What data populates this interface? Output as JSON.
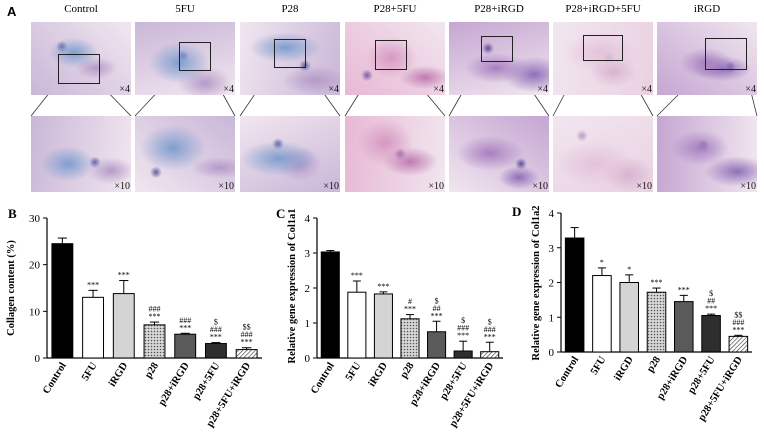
{
  "panel_a": {
    "letter": "A",
    "columns": [
      {
        "label": "Control",
        "top_mag": "×4",
        "bottom_mag": "×10",
        "stain": "blue"
      },
      {
        "label": "5FU",
        "top_mag": "×4",
        "bottom_mag": "×10",
        "stain": "blue"
      },
      {
        "label": "P28",
        "top_mag": "×4",
        "bottom_mag": "×10",
        "stain": "blue"
      },
      {
        "label": "P28+5FU",
        "top_mag": "×4",
        "bottom_mag": "×10",
        "stain": "pink"
      },
      {
        "label": "P28+iRGD",
        "top_mag": "×4",
        "bottom_mag": "×10",
        "stain": "purple"
      },
      {
        "label": "P28+iRGD+5FU",
        "top_mag": "×4",
        "bottom_mag": "×10",
        "stain": "pale"
      },
      {
        "label": "iRGD",
        "top_mag": "×4",
        "bottom_mag": "×10",
        "stain": "purple"
      }
    ]
  },
  "chart_data": [
    {
      "panel": "B",
      "type": "bar",
      "ylabel": "Collagen content (%)",
      "xlabel": "",
      "ylim": [
        0,
        30
      ],
      "yticks": [
        "0",
        "10",
        "20",
        "30"
      ],
      "categories": [
        "Control",
        "5FU",
        "iRGD",
        "p28",
        "p28+iRGD",
        "p28+5FU",
        "p28+5FU+iRGD"
      ],
      "values": [
        24.5,
        13,
        13.8,
        7.1,
        5.1,
        3.1,
        1.8
      ],
      "errors": [
        1.2,
        1.5,
        2.8,
        0.6,
        0.2,
        0.2,
        0.4
      ],
      "fills": [
        "black",
        "white",
        "lightgray",
        "dotted",
        "darkgray",
        "dark",
        "hatched"
      ],
      "annotations": [
        [],
        [
          "***"
        ],
        [
          "***"
        ],
        [
          "***",
          "###"
        ],
        [
          "***",
          "###"
        ],
        [
          "***",
          "###",
          "$"
        ],
        [
          "***",
          "###",
          "$$"
        ]
      ]
    },
    {
      "panel": "C",
      "type": "bar",
      "ylabel": "Relative gene expression of Col1a1",
      "xlabel": "",
      "ylim": [
        0,
        4
      ],
      "yticks": [
        "0",
        "1",
        "2",
        "3",
        "4"
      ],
      "categories": [
        "Control",
        "5FU",
        "iRGD",
        "p28",
        "p28+iRGD",
        "p28+5FU",
        "p28+5FU+iRGD"
      ],
      "values": [
        3.03,
        1.88,
        1.83,
        1.12,
        0.75,
        0.2,
        0.18
      ],
      "errors": [
        0.04,
        0.32,
        0.06,
        0.12,
        0.3,
        0.28,
        0.27
      ],
      "fills": [
        "black",
        "white",
        "lightgray",
        "dotted",
        "darkgray",
        "dark",
        "hatched"
      ],
      "annotations": [
        [],
        [
          "***"
        ],
        [
          "***"
        ],
        [
          "***",
          "#"
        ],
        [
          "***",
          "##",
          "$"
        ],
        [
          "***",
          "###",
          "$"
        ],
        [
          "***",
          "###",
          "$"
        ]
      ]
    },
    {
      "panel": "D",
      "type": "bar",
      "ylabel": "Relative gene expression of Col1a2",
      "xlabel": "",
      "ylim": [
        0,
        4
      ],
      "yticks": [
        "0",
        "1",
        "2",
        "3",
        "4"
      ],
      "categories": [
        "Control",
        "5FU",
        "iRGD",
        "p28",
        "p28+iRGD",
        "p28+5FU",
        "p28+5FU+iRGD"
      ],
      "values": [
        3.28,
        2.2,
        2.0,
        1.72,
        1.45,
        1.05,
        0.45
      ],
      "errors": [
        0.3,
        0.22,
        0.22,
        0.12,
        0.18,
        0.04,
        0.03
      ],
      "fills": [
        "black",
        "white",
        "lightgray",
        "dotted",
        "darkgray",
        "dark",
        "hatched"
      ],
      "annotations": [
        [],
        [
          "*"
        ],
        [
          "*"
        ],
        [
          "***"
        ],
        [
          "***"
        ],
        [
          "***",
          "##",
          "$"
        ],
        [
          "***",
          "###",
          "$$"
        ]
      ]
    }
  ]
}
